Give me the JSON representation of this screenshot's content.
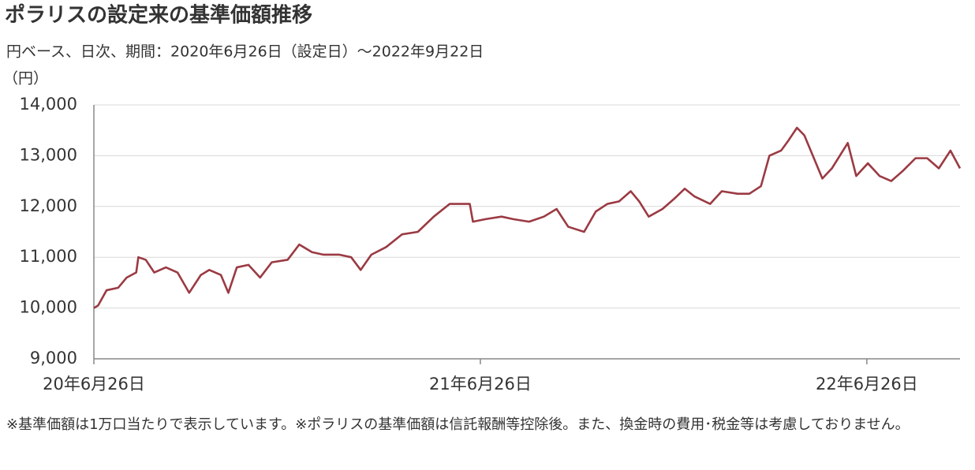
{
  "chart_data": {
    "type": "line",
    "title": "ポラリスの設定来の基準価額推移",
    "subtitle": "円ベース、日次、期間：2020年6月26日（設定日）～2022年9月22日",
    "y_label": "（円）",
    "footnote": "※基準価額は1万口当たりで表示しています。※ポラリスの基準価額は信託報酬等控除後。また、換金時の費用･税金等は考慮しておりません。",
    "color": "#9b3a43",
    "grid": true,
    "x": [
      "2020-06-26",
      "2020-06-30",
      "2020-07-08",
      "2020-07-19",
      "2020-07-27",
      "2020-08-05",
      "2020-08-07",
      "2020-08-14",
      "2020-08-22",
      "2020-09-02",
      "2020-09-13",
      "2020-09-24",
      "2020-10-05",
      "2020-10-13",
      "2020-10-24",
      "2020-10-31",
      "2020-11-08",
      "2020-11-19",
      "2020-11-30",
      "2020-12-11",
      "2020-12-26",
      "2021-01-06",
      "2021-01-18",
      "2021-01-29",
      "2021-02-13",
      "2021-02-24",
      "2021-03-05",
      "2021-03-15",
      "2021-03-29",
      "2021-04-13",
      "2021-04-28",
      "2021-05-13",
      "2021-05-28",
      "2021-06-16",
      "2021-06-19",
      "2021-07-01",
      "2021-07-16",
      "2021-07-27",
      "2021-08-11",
      "2021-08-25",
      "2021-09-06",
      "2021-09-17",
      "2021-10-02",
      "2021-10-13",
      "2021-10-24",
      "2021-11-04",
      "2021-11-15",
      "2021-11-23",
      "2021-12-02",
      "2021-12-15",
      "2021-12-26",
      "2022-01-05",
      "2022-01-14",
      "2022-01-29",
      "2022-02-09",
      "2022-02-24",
      "2022-03-07",
      "2022-03-18",
      "2022-03-26",
      "2022-04-06",
      "2022-04-13",
      "2022-04-21",
      "2022-04-28",
      "2022-05-06",
      "2022-05-15",
      "2022-05-24",
      "2022-06-08",
      "2022-06-16",
      "2022-06-27",
      "2022-07-08",
      "2022-07-19",
      "2022-07-30",
      "2022-08-11",
      "2022-08-22",
      "2022-09-02",
      "2022-09-13",
      "2022-09-22"
    ],
    "values": [
      10000,
      10050,
      10350,
      10400,
      10600,
      10700,
      11000,
      10950,
      10700,
      10800,
      10700,
      10300,
      10650,
      10750,
      10650,
      10300,
      10800,
      10850,
      10600,
      10900,
      10950,
      11250,
      11100,
      11050,
      11050,
      11000,
      10750,
      11050,
      11200,
      11450,
      11500,
      11800,
      12050,
      12050,
      11700,
      11750,
      11800,
      11750,
      11700,
      11800,
      11950,
      11600,
      11500,
      11900,
      12050,
      12100,
      12300,
      12100,
      11800,
      11950,
      12150,
      12350,
      12200,
      12050,
      12300,
      12250,
      12250,
      12400,
      13000,
      13100,
      13300,
      13550,
      13400,
      13000,
      12550,
      12750,
      13250,
      12600,
      12850,
      12600,
      12500,
      12700,
      12950,
      12950,
      12750,
      13100,
      12750
    ],
    "xlim": [
      "2020-06-26",
      "2022-09-22"
    ],
    "xticks": [
      {
        "value": "2020-06-26",
        "label": "20年6月26日"
      },
      {
        "value": "2021-06-26",
        "label": "21年6月26日"
      },
      {
        "value": "2022-06-26",
        "label": "22年6月26日"
      }
    ],
    "ylim": [
      9000,
      14000
    ],
    "yticks": [
      {
        "value": 9000,
        "label": "9,000"
      },
      {
        "value": 10000,
        "label": "10,000"
      },
      {
        "value": 11000,
        "label": "11,000"
      },
      {
        "value": 12000,
        "label": "12,000"
      },
      {
        "value": 13000,
        "label": "13,000"
      },
      {
        "value": 14000,
        "label": "14,000"
      }
    ]
  }
}
